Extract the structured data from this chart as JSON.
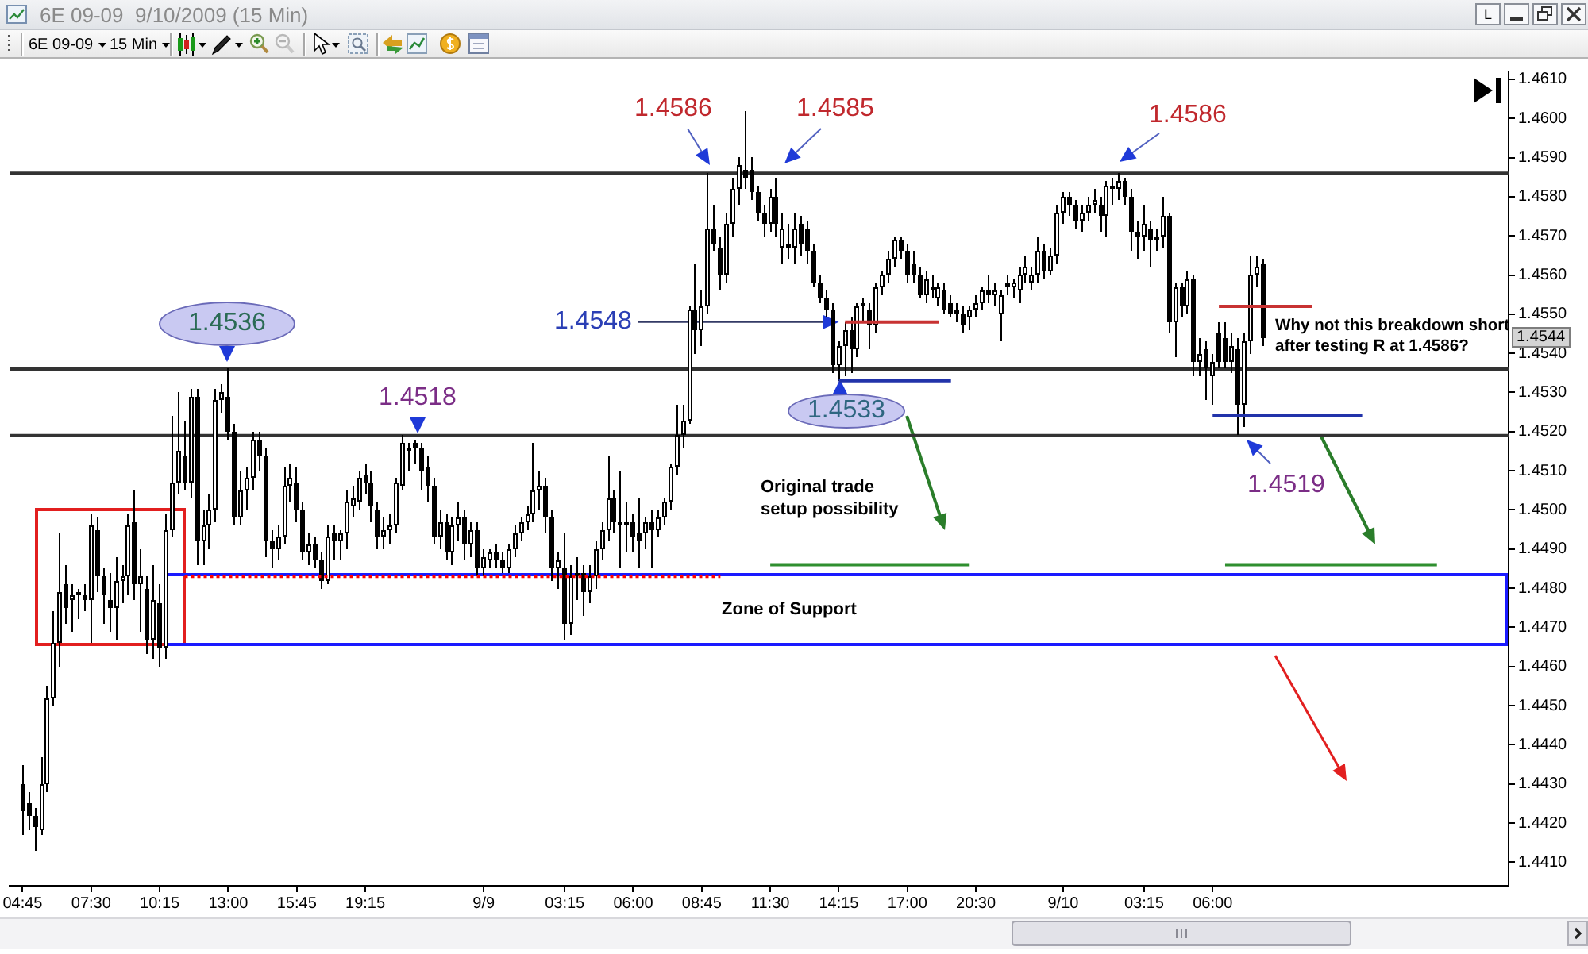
{
  "chart_data": {
    "type": "candlestick",
    "title": "6E 09-09  9/10/2009 (15 Min)",
    "marker": "none",
    "categories": [
      "04:45",
      null,
      null,
      null,
      null,
      null,
      null,
      null,
      null,
      null,
      null,
      "07:30",
      null,
      null,
      null,
      null,
      null,
      null,
      null,
      null,
      null,
      null,
      "10:15",
      null,
      null,
      null,
      null,
      null,
      null,
      null,
      null,
      null,
      null,
      "13:00",
      null,
      null,
      null,
      null,
      null,
      null,
      null,
      null,
      null,
      null,
      "15:45",
      null,
      null,
      null,
      null,
      null,
      null,
      null,
      null,
      null,
      null,
      "19:15",
      null,
      null,
      null,
      null,
      null,
      null,
      null,
      null,
      null,
      null,
      null,
      null,
      null,
      null,
      null,
      null,
      null,
      null,
      "9/9",
      null,
      null,
      null,
      null,
      null,
      null,
      null,
      null,
      null,
      null,
      null,
      null,
      "03:15",
      null,
      null,
      null,
      null,
      null,
      null,
      null,
      null,
      null,
      null,
      "06:00",
      null,
      null,
      null,
      null,
      null,
      null,
      null,
      null,
      null,
      null,
      "08:45",
      null,
      null,
      null,
      null,
      null,
      null,
      null,
      null,
      null,
      null,
      "11:30",
      null,
      null,
      null,
      null,
      null,
      null,
      null,
      null,
      null,
      null,
      "14:15",
      null,
      null,
      null,
      null,
      null,
      null,
      null,
      null,
      null,
      null,
      "17:00",
      null,
      null,
      null,
      null,
      null,
      null,
      null,
      null,
      null,
      null,
      "20:30",
      null,
      null,
      null,
      null,
      null,
      null,
      null,
      null,
      null,
      null,
      null,
      null,
      null,
      "9/10",
      null,
      null,
      null,
      null,
      null,
      null,
      null,
      null,
      null,
      null,
      null,
      null,
      "03:15",
      null,
      null,
      null,
      null,
      null,
      null,
      null,
      null,
      null,
      null,
      "06:00",
      null,
      null,
      null,
      null,
      null,
      null,
      null,
      null,
      null,
      null,
      null,
      null,
      null,
      null,
      null,
      null,
      null,
      null,
      null,
      null,
      null,
      null,
      null,
      null,
      null,
      null,
      null,
      null,
      null,
      null,
      null,
      null,
      null,
      null,
      null,
      null,
      null,
      null,
      null,
      null,
      null,
      null,
      null,
      null,
      null,
      null,
      null
    ],
    "ohlc": [
      [
        1.443,
        1.4435,
        1.4417,
        1.4423
      ],
      [
        1.4425,
        1.4428,
        1.4418,
        1.4422
      ],
      [
        1.4422,
        1.4424,
        1.4413,
        1.4419
      ],
      [
        1.4418,
        1.4437,
        1.4417,
        1.443
      ],
      [
        1.443,
        1.4455,
        1.4428,
        1.4452
      ],
      [
        1.4452,
        1.4474,
        1.445,
        1.4466
      ],
      [
        1.4466,
        1.4494,
        1.446,
        1.4479
      ],
      [
        1.4481,
        1.4486,
        1.4471,
        1.4475
      ],
      [
        1.4477,
        1.4481,
        1.4469,
        1.4478
      ],
      [
        1.4478,
        1.448,
        1.4472,
        1.4479
      ],
      [
        1.4478,
        1.4481,
        1.4474,
        1.4477
      ],
      [
        1.4477,
        1.4499,
        1.4466,
        1.4496
      ],
      [
        1.4495,
        1.4498,
        1.4479,
        1.4483
      ],
      [
        1.4483,
        1.4485,
        1.4471,
        1.4478
      ],
      [
        1.4477,
        1.4484,
        1.4469,
        1.4475
      ],
      [
        1.4475,
        1.4488,
        1.4467,
        1.4482
      ],
      [
        1.4482,
        1.4486,
        1.4476,
        1.4483
      ],
      [
        1.4483,
        1.4499,
        1.4478,
        1.4496
      ],
      [
        1.4497,
        1.4505,
        1.4477,
        1.4481
      ],
      [
        1.4481,
        1.449,
        1.4469,
        1.4483
      ],
      [
        1.448,
        1.4483,
        1.4463,
        1.4467
      ],
      [
        1.4467,
        1.4486,
        1.4462,
        1.4477
      ],
      [
        1.4476,
        1.4481,
        1.446,
        1.4465
      ],
      [
        1.4465,
        1.4499,
        1.4462,
        1.4495
      ],
      [
        1.4495,
        1.4524,
        1.4493,
        1.4507
      ],
      [
        1.4507,
        1.453,
        1.4504,
        1.4515
      ],
      [
        1.4514,
        1.4523,
        1.4505,
        1.4507
      ],
      [
        1.4507,
        1.4531,
        1.4503,
        1.4529
      ],
      [
        1.4529,
        1.4531,
        1.4486,
        1.4492
      ],
      [
        1.4492,
        1.45,
        1.4486,
        1.4496
      ],
      [
        1.4496,
        1.4504,
        1.449,
        1.45
      ],
      [
        1.45,
        1.4531,
        1.4497,
        1.4528
      ],
      [
        1.4528,
        1.4532,
        1.4525,
        1.453
      ],
      [
        1.4529,
        1.4536,
        1.4518,
        1.452
      ],
      [
        1.452,
        1.4522,
        1.4496,
        1.4498
      ],
      [
        1.4498,
        1.451,
        1.4496,
        1.4505
      ],
      [
        1.4505,
        1.4511,
        1.45,
        1.4508
      ],
      [
        1.4508,
        1.452,
        1.4505,
        1.4518
      ],
      [
        1.4518,
        1.452,
        1.451,
        1.4514
      ],
      [
        1.4514,
        1.4516,
        1.4488,
        1.4492
      ],
      [
        1.4492,
        1.4495,
        1.4485,
        1.449
      ],
      [
        1.449,
        1.4496,
        1.4487,
        1.4493
      ],
      [
        1.4493,
        1.4511,
        1.4491,
        1.4506
      ],
      [
        1.4506,
        1.4512,
        1.4502,
        1.4508
      ],
      [
        1.4507,
        1.4511,
        1.4497,
        1.45
      ],
      [
        1.45,
        1.4502,
        1.4487,
        1.4489
      ],
      [
        1.4489,
        1.4494,
        1.4486,
        1.4491
      ],
      [
        1.4491,
        1.4493,
        1.4485,
        1.4487
      ],
      [
        1.4487,
        1.4489,
        1.448,
        1.4482
      ],
      [
        1.4482,
        1.4496,
        1.4481,
        1.4493
      ],
      [
        1.4494,
        1.4496,
        1.4487,
        1.4492
      ],
      [
        1.4492,
        1.4495,
        1.4487,
        1.4494
      ],
      [
        1.4494,
        1.4505,
        1.449,
        1.4502
      ],
      [
        1.4501,
        1.4506,
        1.4498,
        1.4503
      ],
      [
        1.4502,
        1.451,
        1.45,
        1.4508
      ],
      [
        1.4509,
        1.4512,
        1.4504,
        1.4507
      ],
      [
        1.4507,
        1.451,
        1.4497,
        1.4501
      ],
      [
        1.45,
        1.4502,
        1.449,
        1.4493
      ],
      [
        1.4493,
        1.4498,
        1.449,
        1.4495
      ],
      [
        1.4495,
        1.4499,
        1.4491,
        1.4496
      ],
      [
        1.4496,
        1.4508,
        1.4494,
        1.4507
      ],
      [
        1.4506,
        1.4519,
        1.4505,
        1.4517
      ],
      [
        1.4515,
        1.4517,
        1.451,
        1.4516
      ],
      [
        1.4517,
        1.4518,
        1.4512,
        1.4516
      ],
      [
        1.4516,
        1.4517,
        1.4505,
        1.451
      ],
      [
        1.4511,
        1.4514,
        1.4502,
        1.4506
      ],
      [
        1.4506,
        1.4508,
        1.4491,
        1.4493
      ],
      [
        1.4493,
        1.45,
        1.449,
        1.4497
      ],
      [
        1.4497,
        1.4499,
        1.4487,
        1.4489
      ],
      [
        1.4489,
        1.4498,
        1.4486,
        1.4496
      ],
      [
        1.4496,
        1.4502,
        1.4492,
        1.4498
      ],
      [
        1.4498,
        1.45,
        1.4487,
        1.4491
      ],
      [
        1.4491,
        1.4497,
        1.4488,
        1.4495
      ],
      [
        1.4495,
        1.4497,
        1.4483,
        1.4485
      ],
      [
        1.4485,
        1.449,
        1.4483,
        1.4488
      ],
      [
        1.4487,
        1.449,
        1.4485,
        1.4489
      ],
      [
        1.4489,
        1.4491,
        1.4485,
        1.4487
      ],
      [
        1.4487,
        1.4489,
        1.4484,
        1.4485
      ],
      [
        1.4485,
        1.4491,
        1.4484,
        1.449
      ],
      [
        1.449,
        1.4496,
        1.4488,
        1.4494
      ],
      [
        1.4494,
        1.4498,
        1.4492,
        1.4497
      ],
      [
        1.4497,
        1.4501,
        1.4495,
        1.4499
      ],
      [
        1.4499,
        1.4517,
        1.4497,
        1.4505
      ],
      [
        1.4505,
        1.451,
        1.45,
        1.4506
      ],
      [
        1.4506,
        1.4508,
        1.4494,
        1.4498
      ],
      [
        1.4498,
        1.45,
        1.4482,
        1.4485
      ],
      [
        1.4485,
        1.4489,
        1.448,
        1.4487
      ],
      [
        1.4485,
        1.4494,
        1.4467,
        1.4471
      ],
      [
        1.4471,
        1.4486,
        1.4468,
        1.4483
      ],
      [
        1.4483,
        1.4488,
        1.4477,
        1.4484
      ],
      [
        1.4484,
        1.4486,
        1.4473,
        1.4479
      ],
      [
        1.4479,
        1.4486,
        1.4476,
        1.4483
      ],
      [
        1.4483,
        1.4492,
        1.448,
        1.449
      ],
      [
        1.449,
        1.4497,
        1.4487,
        1.4495
      ],
      [
        1.4495,
        1.4514,
        1.4492,
        1.4503
      ],
      [
        1.4503,
        1.4505,
        1.4494,
        1.4497
      ],
      [
        1.4497,
        1.451,
        1.4485,
        1.4496
      ],
      [
        1.4496,
        1.4502,
        1.4489,
        1.4497
      ],
      [
        1.4497,
        1.4499,
        1.4489,
        1.4493
      ],
      [
        1.4494,
        1.4503,
        1.4485,
        1.4492
      ],
      [
        1.4494,
        1.4498,
        1.449,
        1.4497
      ],
      [
        1.4497,
        1.45,
        1.4485,
        1.4495
      ],
      [
        1.4495,
        1.45,
        1.4493,
        1.4498
      ],
      [
        1.4498,
        1.4503,
        1.4496,
        1.4502
      ],
      [
        1.4502,
        1.4512,
        1.45,
        1.4511
      ],
      [
        1.4511,
        1.4527,
        1.4509,
        1.4519
      ],
      [
        1.4519,
        1.4527,
        1.4516,
        1.4523
      ],
      [
        1.4523,
        1.4552,
        1.4522,
        1.4551
      ],
      [
        1.4551,
        1.4563,
        1.454,
        1.4546
      ],
      [
        1.4546,
        1.4556,
        1.4542,
        1.4552
      ],
      [
        1.4552,
        1.4586,
        1.455,
        1.4572
      ],
      [
        1.4572,
        1.4578,
        1.4566,
        1.4568
      ],
      [
        1.4567,
        1.457,
        1.4556,
        1.456
      ],
      [
        1.456,
        1.4576,
        1.4558,
        1.4573
      ],
      [
        1.4573,
        1.4585,
        1.457,
        1.4582
      ],
      [
        1.4582,
        1.459,
        1.4578,
        1.4588
      ],
      [
        1.4587,
        1.4602,
        1.4582,
        1.4585
      ],
      [
        1.4587,
        1.459,
        1.4579,
        1.4581
      ],
      [
        1.4581,
        1.4583,
        1.4574,
        1.4576
      ],
      [
        1.4576,
        1.4578,
        1.457,
        1.4573
      ],
      [
        1.4573,
        1.4582,
        1.4571,
        1.458
      ],
      [
        1.458,
        1.4585,
        1.457,
        1.4573
      ],
      [
        1.4567,
        1.4576,
        1.4563,
        1.4572
      ],
      [
        1.4568,
        1.4573,
        1.4564,
        1.4567
      ],
      [
        1.4567,
        1.4576,
        1.4563,
        1.4572
      ],
      [
        1.4573,
        1.4575,
        1.4565,
        1.4568
      ],
      [
        1.4572,
        1.4574,
        1.4563,
        1.4566
      ],
      [
        1.4566,
        1.4568,
        1.4557,
        1.4558
      ],
      [
        1.4558,
        1.456,
        1.4553,
        1.4554
      ],
      [
        1.4554,
        1.4556,
        1.4549,
        1.4551
      ],
      [
        1.4551,
        1.4553,
        1.4535,
        1.4537
      ],
      [
        1.4537,
        1.4543,
        1.4533,
        1.4542
      ],
      [
        1.4542,
        1.4548,
        1.4534,
        1.4546
      ],
      [
        1.4546,
        1.4549,
        1.4535,
        1.4541
      ],
      [
        1.4541,
        1.4553,
        1.4539,
        1.4552
      ],
      [
        1.4552,
        1.4554,
        1.4548,
        1.4553
      ],
      [
        1.4551,
        1.4553,
        1.4541,
        1.4547
      ],
      [
        1.4547,
        1.4558,
        1.4545,
        1.4557
      ],
      [
        1.4557,
        1.4561,
        1.4555,
        1.456
      ],
      [
        1.456,
        1.4566,
        1.4558,
        1.4564
      ],
      [
        1.4564,
        1.457,
        1.4562,
        1.4569
      ],
      [
        1.4569,
        1.457,
        1.4564,
        1.4566
      ],
      [
        1.4566,
        1.4568,
        1.4558,
        1.456
      ],
      [
        1.4563,
        1.4566,
        1.4558,
        1.456
      ],
      [
        1.456,
        1.4562,
        1.4554,
        1.4555
      ],
      [
        1.4555,
        1.4561,
        1.4553,
        1.4559
      ],
      [
        1.4557,
        1.456,
        1.4554,
        1.4556
      ],
      [
        1.4554,
        1.4558,
        1.4552,
        1.4557
      ],
      [
        1.4556,
        1.4558,
        1.455,
        1.4551
      ],
      [
        1.4553,
        1.4555,
        1.4549,
        1.455
      ],
      [
        1.4551,
        1.4553,
        1.4548,
        1.455
      ],
      [
        1.455,
        1.4552,
        1.4545,
        1.4547
      ],
      [
        1.4549,
        1.4552,
        1.4546,
        1.4551
      ],
      [
        1.4551,
        1.4555,
        1.4549,
        1.4553
      ],
      [
        1.4553,
        1.4557,
        1.4551,
        1.4556
      ],
      [
        1.4556,
        1.456,
        1.4553,
        1.4555
      ],
      [
        1.4555,
        1.4558,
        1.4552,
        1.4556
      ],
      [
        1.455,
        1.4556,
        1.4543,
        1.4555
      ],
      [
        1.4558,
        1.456,
        1.4555,
        1.4557
      ],
      [
        1.4557,
        1.4559,
        1.4554,
        1.4558
      ],
      [
        1.4556,
        1.4562,
        1.4553,
        1.456
      ],
      [
        1.456,
        1.4565,
        1.4558,
        1.4562
      ],
      [
        1.4558,
        1.4562,
        1.4556,
        1.456
      ],
      [
        1.456,
        1.457,
        1.4558,
        1.4566
      ],
      [
        1.4566,
        1.4568,
        1.4559,
        1.4561
      ],
      [
        1.4561,
        1.4567,
        1.456,
        1.4565
      ],
      [
        1.4565,
        1.4578,
        1.4563,
        1.4576
      ],
      [
        1.4576,
        1.4581,
        1.4573,
        1.458
      ],
      [
        1.458,
        1.4581,
        1.4575,
        1.4578
      ],
      [
        1.4578,
        1.4579,
        1.4572,
        1.4574
      ],
      [
        1.4574,
        1.4578,
        1.4571,
        1.4576
      ],
      [
        1.4576,
        1.458,
        1.4574,
        1.4578
      ],
      [
        1.4578,
        1.4582,
        1.4576,
        1.4579
      ],
      [
        1.4578,
        1.458,
        1.4571,
        1.4575
      ],
      [
        1.4575,
        1.4584,
        1.457,
        1.4583
      ],
      [
        1.4583,
        1.4585,
        1.4578,
        1.4582
      ],
      [
        1.4582,
        1.4586,
        1.4579,
        1.4584
      ],
      [
        1.4584,
        1.4585,
        1.4578,
        1.458
      ],
      [
        1.458,
        1.4582,
        1.4566,
        1.4571
      ],
      [
        1.4571,
        1.4574,
        1.4564,
        1.457
      ],
      [
        1.457,
        1.4578,
        1.4566,
        1.4573
      ],
      [
        1.4572,
        1.4574,
        1.4562,
        1.4569
      ],
      [
        1.4569,
        1.4572,
        1.4566,
        1.457
      ],
      [
        1.457,
        1.458,
        1.4567,
        1.4575
      ],
      [
        1.4575,
        1.4576,
        1.4545,
        1.4548
      ],
      [
        1.4548,
        1.4558,
        1.4539,
        1.4557
      ],
      [
        1.4557,
        1.4558,
        1.4549,
        1.4552
      ],
      [
        1.4552,
        1.4561,
        1.455,
        1.4559
      ],
      [
        1.4559,
        1.456,
        1.4534,
        1.4538
      ],
      [
        1.4538,
        1.4544,
        1.4534,
        1.454
      ],
      [
        1.4541,
        1.4543,
        1.4528,
        1.4536
      ],
      [
        1.4534,
        1.454,
        1.4527,
        1.4538
      ],
      [
        1.4545,
        1.4548,
        1.4536,
        1.4538
      ],
      [
        1.4544,
        1.4548,
        1.4536,
        1.4538
      ],
      [
        1.4538,
        1.4545,
        1.4535,
        1.4542
      ],
      [
        1.4541,
        1.4544,
        1.4519,
        1.4527
      ],
      [
        1.4527,
        1.4545,
        1.4521,
        1.4543
      ],
      [
        1.4543,
        1.4565,
        1.454,
        1.456
      ],
      [
        1.456,
        1.4565,
        1.4557,
        1.4562
      ],
      [
        1.4563,
        1.4564,
        1.4542,
        1.4544
      ],
      null,
      null,
      null,
      null,
      null,
      null,
      null,
      null,
      null,
      null,
      null,
      null,
      null,
      null,
      null,
      null,
      null,
      null,
      null,
      null,
      null,
      null,
      null,
      null,
      null,
      null,
      null,
      null,
      null,
      null,
      null,
      null,
      null,
      null,
      null,
      null,
      null,
      null,
      null
    ],
    "series": [
      {
        "type": "line",
        "color": "#ff0000",
        "line_style": "dotted",
        "values": [
          null,
          null,
          null,
          null,
          null,
          null,
          null,
          null,
          null,
          null,
          null,
          null,
          null,
          null,
          null,
          null,
          null,
          null,
          null,
          null,
          null,
          null,
          null,
          null,
          null,
          null,
          1.4483,
          1.4483,
          1.4483,
          1.4483,
          1.4483,
          1.4483,
          1.4483,
          1.4483,
          1.4483,
          1.4483,
          1.4483,
          1.4483,
          1.4483,
          1.4483,
          1.4483,
          1.4483,
          1.4483,
          1.4483,
          1.4483,
          1.4483,
          1.4483,
          1.4483,
          1.4483,
          1.4483,
          1.4483,
          1.4483,
          1.4483,
          1.4483,
          1.4483,
          1.4483,
          1.4483,
          1.4483,
          1.4483,
          1.4483,
          1.4483,
          1.4483,
          1.4483,
          1.4483,
          1.4483,
          1.4483,
          1.4483,
          1.4483,
          1.4483,
          1.4483,
          1.4483,
          1.4483,
          1.4483,
          1.4483,
          1.4483,
          1.4483,
          1.4483,
          1.4483,
          1.4483,
          1.4483,
          1.4483,
          1.4483,
          1.4483,
          1.4483,
          1.4483,
          1.4483,
          1.4483,
          1.4483,
          1.4483,
          1.4483,
          1.4483,
          1.4483,
          1.4483,
          1.4483,
          1.4483,
          1.4483,
          1.4483,
          1.4483,
          1.4483,
          1.4483,
          1.4483,
          1.4483,
          1.4483,
          1.4483,
          1.4483,
          1.4483,
          1.4483,
          1.4483,
          1.4483,
          1.4483,
          1.4483,
          1.4483,
          1.4483,
          null,
          null,
          null,
          null,
          null,
          null,
          null,
          null,
          null,
          null,
          null,
          null,
          null,
          null,
          null,
          null,
          null,
          null,
          null,
          null,
          null,
          null,
          null,
          null,
          null,
          null,
          null,
          null,
          null,
          null,
          null,
          null,
          null,
          null,
          null,
          null,
          null,
          null,
          null,
          null,
          null,
          null,
          null,
          null,
          null,
          null,
          null,
          null,
          null,
          null,
          null,
          null,
          null,
          null,
          null,
          null,
          null,
          null,
          null,
          null,
          null,
          null,
          null,
          null,
          null,
          null,
          null,
          null,
          null,
          null,
          null,
          null,
          null,
          null,
          null,
          null,
          null,
          null,
          null,
          null,
          null,
          null,
          null,
          null,
          null,
          null,
          null,
          null,
          null,
          null,
          null,
          null,
          null,
          null,
          null,
          null,
          null,
          null,
          null,
          null,
          null,
          null,
          null,
          null,
          null,
          null,
          null,
          null,
          null,
          null,
          null,
          null,
          null,
          null,
          null,
          null,
          null,
          null,
          null,
          null,
          null,
          null,
          null,
          null,
          null,
          null
        ]
      },
      {
        "type": "line",
        "color": "#c83232",
        "line_style": "solid",
        "values": [
          null,
          null,
          null,
          null,
          null,
          null,
          null,
          null,
          null,
          null,
          null,
          null,
          null,
          null,
          null,
          null,
          null,
          null,
          null,
          null,
          null,
          null,
          null,
          null,
          null,
          null,
          null,
          null,
          null,
          null,
          null,
          null,
          null,
          null,
          null,
          null,
          null,
          null,
          null,
          null,
          null,
          null,
          null,
          null,
          null,
          null,
          null,
          null,
          null,
          null,
          null,
          null,
          null,
          null,
          null,
          null,
          null,
          null,
          null,
          null,
          null,
          null,
          null,
          null,
          null,
          null,
          null,
          null,
          null,
          null,
          null,
          null,
          null,
          null,
          null,
          null,
          null,
          null,
          null,
          null,
          null,
          null,
          null,
          null,
          null,
          null,
          null,
          null,
          null,
          null,
          null,
          null,
          null,
          null,
          null,
          null,
          null,
          null,
          null,
          null,
          null,
          null,
          null,
          null,
          null,
          null,
          null,
          null,
          null,
          null,
          null,
          null,
          null,
          null,
          null,
          null,
          null,
          null,
          null,
          null,
          null,
          null,
          null,
          null,
          null,
          null,
          null,
          null,
          null,
          null,
          null,
          null,
          1.4548,
          1.4548,
          1.4548,
          1.4548,
          1.4548,
          1.4548,
          1.4548,
          1.4548,
          1.4548,
          1.4548,
          1.4548,
          1.4548,
          1.4548,
          1.4548,
          1.4548,
          1.4548,
          null,
          null,
          null,
          null,
          null,
          null,
          null,
          null,
          null,
          null,
          null,
          null,
          null,
          null,
          null,
          null,
          null,
          null,
          null,
          null,
          null,
          null,
          null,
          null,
          null,
          null,
          null,
          null,
          null,
          null,
          null,
          null,
          null,
          null,
          null,
          null,
          null,
          null,
          null,
          null,
          null,
          null,
          null,
          null,
          1.4552,
          1.4552,
          1.4552,
          1.4552,
          1.4552,
          1.4552,
          1.4552,
          1.4552,
          1.4552,
          1.4552,
          1.4552,
          1.4552,
          1.4552,
          1.4552,
          1.4552,
          1.4552,
          null,
          null,
          null,
          null,
          null,
          null,
          null,
          null,
          null,
          null,
          null,
          null,
          null,
          null,
          null,
          null,
          null,
          null,
          null,
          null,
          null,
          null,
          null,
          null,
          null,
          null,
          null,
          null,
          null,
          null,
          null
        ]
      },
      {
        "type": "line",
        "color": "#2233aa",
        "line_style": "solid",
        "values": [
          null,
          null,
          null,
          null,
          null,
          null,
          null,
          null,
          null,
          null,
          null,
          null,
          null,
          null,
          null,
          null,
          null,
          null,
          null,
          null,
          null,
          null,
          null,
          null,
          null,
          null,
          null,
          null,
          null,
          null,
          null,
          null,
          null,
          null,
          null,
          null,
          null,
          null,
          null,
          null,
          null,
          null,
          null,
          null,
          null,
          null,
          null,
          null,
          null,
          null,
          null,
          null,
          null,
          null,
          null,
          null,
          null,
          null,
          null,
          null,
          null,
          null,
          null,
          null,
          null,
          null,
          null,
          null,
          null,
          null,
          null,
          null,
          null,
          null,
          null,
          null,
          null,
          null,
          null,
          null,
          null,
          null,
          null,
          null,
          null,
          null,
          null,
          null,
          null,
          null,
          null,
          null,
          null,
          null,
          null,
          null,
          null,
          null,
          null,
          null,
          null,
          null,
          null,
          null,
          null,
          null,
          null,
          null,
          null,
          null,
          null,
          null,
          null,
          null,
          null,
          null,
          null,
          null,
          null,
          null,
          null,
          null,
          null,
          null,
          null,
          null,
          null,
          null,
          null,
          null,
          null,
          1.4533,
          1.4533,
          1.4533,
          1.4533,
          1.4533,
          1.4533,
          1.4533,
          1.4533,
          1.4533,
          1.4533,
          1.4533,
          1.4533,
          1.4533,
          1.4533,
          1.4533,
          1.4533,
          1.4533,
          1.4533,
          1.4533,
          null,
          null,
          null,
          null,
          null,
          null,
          null,
          null,
          null,
          null,
          null,
          null,
          null,
          null,
          null,
          null,
          null,
          null,
          null,
          null,
          null,
          null,
          null,
          null,
          null,
          null,
          null,
          null,
          null,
          null,
          null,
          null,
          null,
          null,
          null,
          null,
          null,
          null,
          null,
          null,
          null,
          1.4524,
          1.4524,
          1.4524,
          1.4524,
          1.4524,
          1.4524,
          1.4524,
          1.4524,
          1.4524,
          1.4524,
          1.4524,
          1.4524,
          1.4524,
          1.4524,
          1.4524,
          1.4524,
          1.4524,
          1.4524,
          1.4524,
          1.4524,
          1.4524,
          1.4524,
          1.4524,
          1.4524,
          1.4524,
          null,
          null,
          null,
          null,
          null,
          null,
          null,
          null,
          null,
          null,
          null,
          null,
          null,
          null,
          null,
          null,
          null,
          null,
          null,
          null,
          null,
          null,
          null
        ]
      },
      {
        "type": "line",
        "color": "#2f8f2f",
        "line_style": "solid",
        "values": [
          null,
          null,
          null,
          null,
          null,
          null,
          null,
          null,
          null,
          null,
          null,
          null,
          null,
          null,
          null,
          null,
          null,
          null,
          null,
          null,
          null,
          null,
          null,
          null,
          null,
          null,
          null,
          null,
          null,
          null,
          null,
          null,
          null,
          null,
          null,
          null,
          null,
          null,
          null,
          null,
          null,
          null,
          null,
          null,
          null,
          null,
          null,
          null,
          null,
          null,
          null,
          null,
          null,
          null,
          null,
          null,
          null,
          null,
          null,
          null,
          null,
          null,
          null,
          null,
          null,
          null,
          null,
          null,
          null,
          null,
          null,
          null,
          null,
          null,
          null,
          null,
          null,
          null,
          null,
          null,
          null,
          null,
          null,
          null,
          null,
          null,
          null,
          null,
          null,
          null,
          null,
          null,
          null,
          null,
          null,
          null,
          null,
          null,
          null,
          null,
          null,
          null,
          null,
          null,
          null,
          null,
          null,
          null,
          null,
          null,
          null,
          null,
          null,
          null,
          null,
          null,
          null,
          null,
          null,
          null,
          1.4486,
          1.4486,
          1.4486,
          1.4486,
          1.4486,
          1.4486,
          1.4486,
          1.4486,
          1.4486,
          1.4486,
          1.4486,
          1.4486,
          1.4486,
          1.4486,
          1.4486,
          1.4486,
          1.4486,
          1.4486,
          1.4486,
          1.4486,
          1.4486,
          1.4486,
          1.4486,
          1.4486,
          1.4486,
          1.4486,
          1.4486,
          1.4486,
          1.4486,
          1.4486,
          1.4486,
          1.4486,
          1.4486,
          null,
          null,
          null,
          null,
          null,
          null,
          null,
          null,
          null,
          null,
          null,
          null,
          null,
          null,
          null,
          null,
          null,
          null,
          null,
          null,
          null,
          null,
          null,
          null,
          null,
          null,
          null,
          null,
          null,
          null,
          null,
          null,
          null,
          null,
          null,
          null,
          null,
          null,
          null,
          null,
          1.4486,
          1.4486,
          1.4486,
          1.4486,
          1.4486,
          1.4486,
          1.4486,
          1.4486,
          1.4486,
          1.4486,
          1.4486,
          1.4486,
          1.4486,
          1.4486,
          1.4486,
          1.4486,
          1.4486,
          1.4486,
          1.4486,
          1.4486,
          1.4486,
          1.4486,
          1.4486,
          1.4486,
          1.4486,
          1.4486,
          1.4486,
          1.4486,
          1.4486,
          1.4486,
          1.4486,
          1.4486,
          1.4486,
          1.4486,
          1.4486,
          null,
          null,
          null,
          null,
          null,
          null,
          null,
          null,
          null,
          null,
          null
        ]
      }
    ],
    "ylim": [
      1.4404,
      1.4612
    ],
    "yticks": [
      {
        "value": 1.441,
        "label": "1.4410"
      },
      {
        "value": 1.442,
        "label": "1.4420"
      },
      {
        "value": 1.443,
        "label": "1.4430"
      },
      {
        "value": 1.444,
        "label": "1.4440"
      },
      {
        "value": 1.445,
        "label": "1.4450"
      },
      {
        "value": 1.446,
        "label": "1.4460"
      },
      {
        "value": 1.447,
        "label": "1.4470"
      },
      {
        "value": 1.448,
        "label": "1.4480"
      },
      {
        "value": 1.449,
        "label": "1.4490"
      },
      {
        "value": 1.45,
        "label": "1.4500"
      },
      {
        "value": 1.451,
        "label": "1.4510"
      },
      {
        "value": 1.452,
        "label": "1.4520"
      },
      {
        "value": 1.453,
        "label": "1.4530"
      },
      {
        "value": 1.454,
        "label": "1.4540"
      },
      {
        "value": 1.455,
        "label": "1.4550"
      },
      {
        "value": 1.456,
        "label": "1.4560"
      },
      {
        "value": 1.457,
        "label": "1.4570"
      },
      {
        "value": 1.458,
        "label": "1.4580"
      },
      {
        "value": 1.459,
        "label": "1.4590"
      },
      {
        "value": 1.46,
        "label": "1.4600"
      },
      {
        "value": 1.461,
        "label": "1.4610"
      }
    ],
    "ref_lines": [
      {
        "axis": "y",
        "value": 1.4586,
        "color": "#333333"
      },
      {
        "axis": "y",
        "value": 1.4536,
        "color": "#333333"
      },
      {
        "axis": "y",
        "value": 1.4519,
        "color": "#333333"
      }
    ],
    "annotations": [
      "6E 09-09",
      "15 Min",
      "L",
      "1.4536",
      "1.4518",
      "1.4586",
      "1.4585",
      {
        "text": "1.4548",
        "x": "14:15",
        "y": 1.4548
      },
      "1.4533",
      "1.4586",
      "1.4519",
      "Why not this breakdown short after testing R at 1.4586?",
      "Original trade setup possibility",
      "Zone of Support",
      {
        "text": "1.4544",
        "y": 1.4544
      }
    ]
  }
}
